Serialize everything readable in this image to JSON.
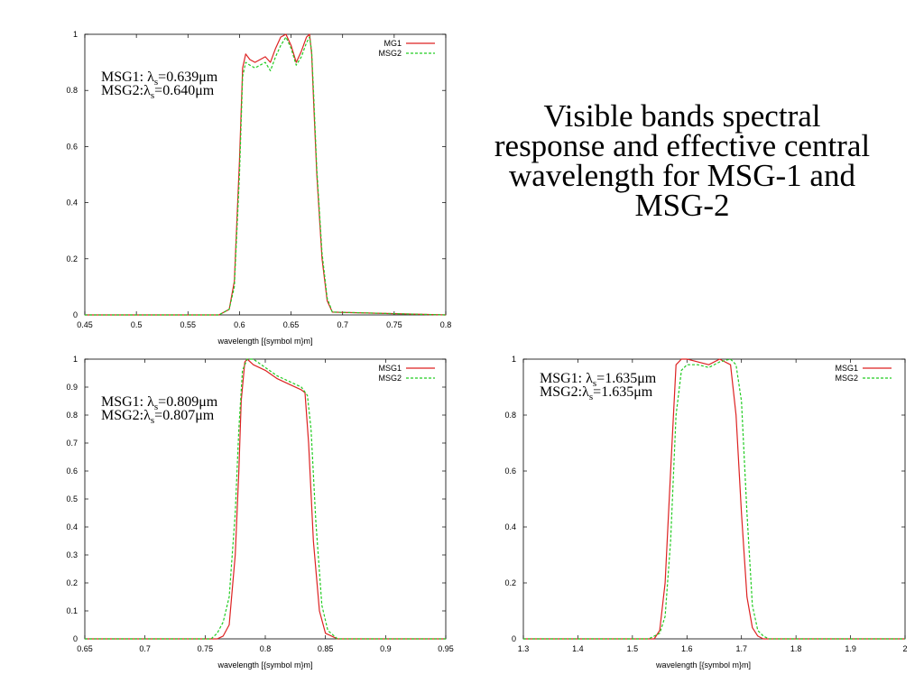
{
  "slide": {
    "title_lines": [
      "Visible bands spectral",
      "response and effective central",
      "wavelength for MSG-1 and",
      "MSG-2"
    ]
  },
  "colors": {
    "MSG1": "#dd2222",
    "MSG2": "#22cc22"
  },
  "chart_data": [
    {
      "type": "line",
      "xlabel": "wavelength [{symbol m}m]",
      "xlim": [
        0.45,
        0.8
      ],
      "ylim": [
        0,
        1
      ],
      "xticks": [
        "0.45",
        "0.5",
        "0.55",
        "0.6",
        "0.65",
        "0.7",
        "0.75",
        "0.8"
      ],
      "yticks": [
        "0",
        "0.2",
        "0.4",
        "0.6",
        "0.8",
        "1"
      ],
      "legend": [
        "MG1",
        "MSG2"
      ],
      "annotations": [
        {
          "pre": "MSG1: ",
          "sym": "λ",
          "sub": "s",
          "post": "=0.639μm"
        },
        {
          "pre": "MSG2:",
          "sym": "λ",
          "sub": "s",
          "post": "=0.640μm"
        }
      ],
      "series": [
        {
          "name": "MG1",
          "x": [
            0.45,
            0.58,
            0.59,
            0.595,
            0.6,
            0.603,
            0.606,
            0.61,
            0.615,
            0.62,
            0.625,
            0.63,
            0.635,
            0.64,
            0.645,
            0.65,
            0.655,
            0.66,
            0.665,
            0.668,
            0.67,
            0.672,
            0.675,
            0.68,
            0.685,
            0.69,
            0.8
          ],
          "y": [
            0,
            0,
            0.02,
            0.12,
            0.55,
            0.88,
            0.93,
            0.91,
            0.9,
            0.91,
            0.92,
            0.9,
            0.95,
            0.99,
            1.0,
            0.96,
            0.9,
            0.94,
            0.99,
            1.0,
            0.93,
            0.75,
            0.5,
            0.2,
            0.05,
            0.01,
            0
          ]
        },
        {
          "name": "MSG2",
          "x": [
            0.45,
            0.58,
            0.59,
            0.595,
            0.6,
            0.603,
            0.606,
            0.61,
            0.615,
            0.62,
            0.625,
            0.63,
            0.635,
            0.64,
            0.645,
            0.65,
            0.655,
            0.66,
            0.665,
            0.668,
            0.67,
            0.672,
            0.675,
            0.68,
            0.685,
            0.69,
            0.8
          ],
          "y": [
            0,
            0,
            0.02,
            0.1,
            0.5,
            0.85,
            0.9,
            0.89,
            0.88,
            0.89,
            0.9,
            0.87,
            0.92,
            0.96,
            0.99,
            0.95,
            0.89,
            0.92,
            0.97,
            0.99,
            0.94,
            0.78,
            0.52,
            0.22,
            0.06,
            0.01,
            0
          ]
        }
      ]
    },
    {
      "type": "line",
      "xlabel": "wavelength [{symbol m}m]",
      "xlim": [
        0.65,
        0.95
      ],
      "ylim": [
        0,
        1
      ],
      "xticks": [
        "0.65",
        "0.7",
        "0.75",
        "0.8",
        "0.85",
        "0.9",
        "0.95"
      ],
      "yticks": [
        "0",
        "0.1",
        "0.2",
        "0.3",
        "0.4",
        "0.5",
        "0.6",
        "0.7",
        "0.8",
        "0.9",
        "1"
      ],
      "legend": [
        "MSG1",
        "MSG2"
      ],
      "annotations": [
        {
          "pre": "MSG1: ",
          "sym": "λ",
          "sub": "s",
          "post": "=0.809μm"
        },
        {
          "pre": "MSG2:",
          "sym": "λ",
          "sub": "s",
          "post": "=0.807μm"
        }
      ],
      "series": [
        {
          "name": "MSG1",
          "x": [
            0.65,
            0.76,
            0.765,
            0.77,
            0.775,
            0.778,
            0.78,
            0.783,
            0.785,
            0.79,
            0.8,
            0.81,
            0.82,
            0.83,
            0.833,
            0.836,
            0.84,
            0.845,
            0.85,
            0.86,
            0.95
          ],
          "y": [
            0,
            0,
            0.01,
            0.05,
            0.3,
            0.6,
            0.85,
            0.99,
            1.0,
            0.98,
            0.96,
            0.93,
            0.91,
            0.89,
            0.88,
            0.7,
            0.35,
            0.1,
            0.02,
            0,
            0
          ]
        },
        {
          "name": "MSG2",
          "x": [
            0.65,
            0.755,
            0.76,
            0.765,
            0.77,
            0.775,
            0.778,
            0.781,
            0.785,
            0.79,
            0.8,
            0.81,
            0.82,
            0.83,
            0.835,
            0.838,
            0.842,
            0.847,
            0.852,
            0.86,
            0.95
          ],
          "y": [
            0,
            0,
            0.02,
            0.06,
            0.15,
            0.45,
            0.75,
            0.96,
            1.0,
            1.0,
            0.97,
            0.94,
            0.92,
            0.9,
            0.87,
            0.75,
            0.42,
            0.12,
            0.03,
            0,
            0
          ]
        }
      ]
    },
    {
      "type": "line",
      "xlabel": "wavelength [{symbol m}m]",
      "xlim": [
        1.3,
        2.0
      ],
      "ylim": [
        0,
        1
      ],
      "xticks": [
        "1.3",
        "1.4",
        "1.5",
        "1.6",
        "1.7",
        "1.8",
        "1.9",
        "2"
      ],
      "yticks": [
        "0",
        "0.2",
        "0.4",
        "0.6",
        "0.8",
        "1"
      ],
      "legend": [
        "MSG1",
        "MSG2"
      ],
      "annotations": [
        {
          "pre": "MSG1: ",
          "sym": "λ",
          "sub": "s",
          "post": "=1.635μm"
        },
        {
          "pre": "MSG2:",
          "sym": "λ",
          "sub": "s",
          "post": "=1.635μm"
        }
      ],
      "series": [
        {
          "name": "MSG1",
          "x": [
            1.3,
            1.54,
            1.55,
            1.56,
            1.57,
            1.58,
            1.59,
            1.6,
            1.62,
            1.64,
            1.66,
            1.68,
            1.69,
            1.7,
            1.71,
            1.72,
            1.73,
            1.74,
            2.0
          ],
          "y": [
            0,
            0,
            0.03,
            0.2,
            0.6,
            0.98,
            1.0,
            1.0,
            0.99,
            0.98,
            1.0,
            0.98,
            0.8,
            0.45,
            0.15,
            0.04,
            0.01,
            0,
            0
          ]
        },
        {
          "name": "MSG2",
          "x": [
            1.3,
            1.53,
            1.55,
            1.56,
            1.57,
            1.58,
            1.59,
            1.6,
            1.62,
            1.64,
            1.66,
            1.68,
            1.69,
            1.7,
            1.71,
            1.72,
            1.73,
            1.74,
            1.75,
            2.0
          ],
          "y": [
            0,
            0,
            0.02,
            0.08,
            0.35,
            0.8,
            0.96,
            0.98,
            0.98,
            0.97,
            0.99,
            1.0,
            0.98,
            0.85,
            0.45,
            0.12,
            0.03,
            0.01,
            0,
            0
          ]
        }
      ]
    }
  ]
}
